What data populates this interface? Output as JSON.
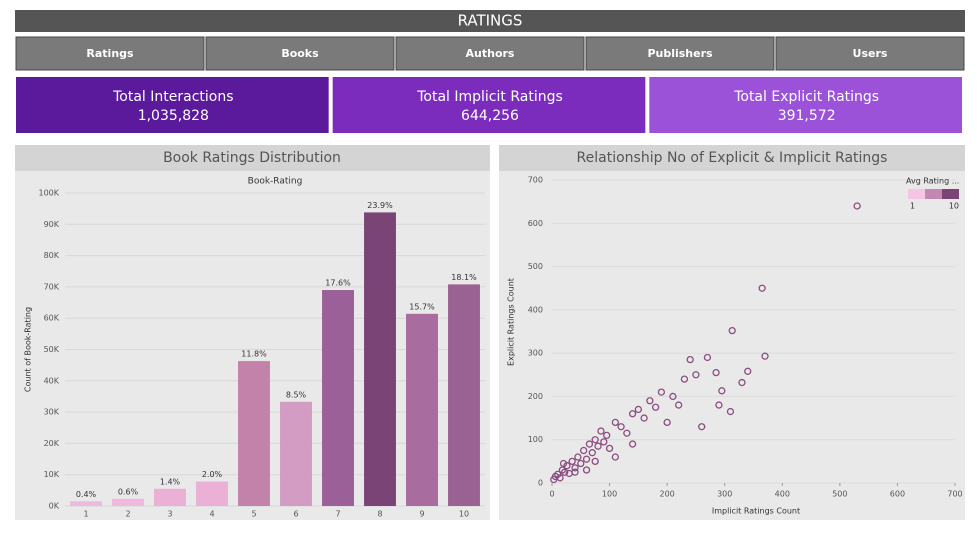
{
  "header": {
    "title": "RATINGS"
  },
  "nav": {
    "tabs": [
      "Ratings",
      "Books",
      "Authors",
      "Publishers",
      "Users"
    ]
  },
  "kpis": [
    {
      "label": "Total Interactions",
      "value": "1,035,828",
      "color": "#5b1a9c"
    },
    {
      "label": "Total Implicit Ratings",
      "value": "644,256",
      "color": "#7b2cbd"
    },
    {
      "label": "Total Explicit Ratings",
      "value": "391,572",
      "color": "#9b52d8"
    }
  ],
  "bar_chart": {
    "type": "bar",
    "title": "Book Ratings Distribution",
    "x_label": "Book-Rating",
    "y_label": "Count of Book-Rating",
    "categories": [
      "1",
      "2",
      "3",
      "4",
      "5",
      "6",
      "7",
      "8",
      "9",
      "10"
    ],
    "values": [
      1500,
      2300,
      5500,
      7800,
      46300,
      33300,
      69000,
      93800,
      61400,
      70800
    ],
    "bar_labels": [
      "0.4%",
      "0.6%",
      "1.4%",
      "2.0%",
      "11.8%",
      "8.5%",
      "17.6%",
      "23.9%",
      "15.7%",
      "18.1%"
    ],
    "colors": [
      "#f0b8dc",
      "#f0b8dc",
      "#eab0d6",
      "#eab0d6",
      "#c282aa",
      "#d39cc3",
      "#9b6097",
      "#7a4576",
      "#a86c9f",
      "#9a6293"
    ],
    "ylim": [
      0,
      100000
    ],
    "yticks": [
      {
        "value": 0,
        "label": "0K"
      },
      {
        "value": 10000,
        "label": "10K"
      },
      {
        "value": 20000,
        "label": "20K"
      },
      {
        "value": 30000,
        "label": "30K"
      },
      {
        "value": 40000,
        "label": "40K"
      },
      {
        "value": 50000,
        "label": "50K"
      },
      {
        "value": 60000,
        "label": "60K"
      },
      {
        "value": 70000,
        "label": "70K"
      },
      {
        "value": 80000,
        "label": "80K"
      },
      {
        "value": 90000,
        "label": "90K"
      },
      {
        "value": 100000,
        "label": "100K"
      }
    ]
  },
  "scatter_chart": {
    "type": "scatter",
    "title": "Relationship No of Explicit & Implicit Ratings",
    "x_label": "Implicit Ratings Count",
    "y_label": "Explicit Ratings Count",
    "color": "#8b4d80",
    "x": [
      3,
      6,
      10,
      14,
      18,
      22,
      26,
      30,
      35,
      40,
      45,
      50,
      55,
      60,
      65,
      70,
      75,
      80,
      85,
      90,
      95,
      100,
      110,
      120,
      130,
      140,
      150,
      160,
      170,
      180,
      190,
      200,
      210,
      220,
      230,
      240,
      250,
      260,
      270,
      285,
      290,
      295,
      310,
      313,
      330,
      340,
      365,
      370,
      530,
      60,
      75,
      110,
      140,
      20,
      40
    ],
    "y": [
      8,
      15,
      20,
      12,
      30,
      25,
      40,
      22,
      50,
      35,
      60,
      45,
      75,
      55,
      90,
      70,
      100,
      85,
      120,
      95,
      110,
      80,
      140,
      130,
      115,
      160,
      170,
      150,
      190,
      175,
      210,
      140,
      200,
      180,
      240,
      285,
      250,
      130,
      290,
      255,
      180,
      213,
      165,
      352,
      232,
      258,
      450,
      293,
      640,
      30,
      50,
      60,
      90,
      45,
      25
    ],
    "xlim": [
      0,
      700
    ],
    "ylim": [
      0,
      700
    ],
    "xticks": [
      0,
      100,
      200,
      300,
      400,
      500,
      600,
      700
    ],
    "yticks": [
      0,
      100,
      200,
      300,
      400,
      500,
      600,
      700
    ],
    "legend": {
      "title": "Avg Rating ...",
      "min": 1,
      "max": 10,
      "colors": [
        "#f4c6e4",
        "#c487b3",
        "#7a4576"
      ]
    }
  }
}
